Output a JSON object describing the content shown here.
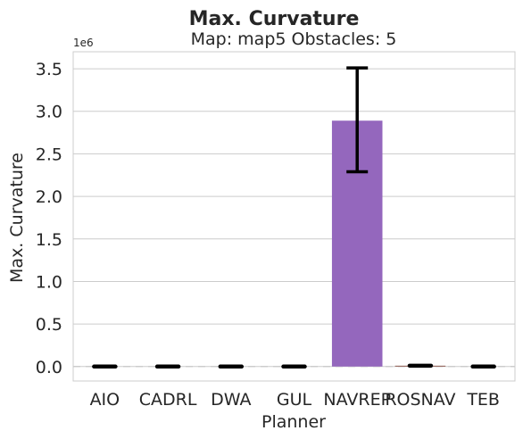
{
  "chart_data": {
    "type": "bar",
    "suptitle": "Max. Curvature",
    "title": "Map: map5 Obstacles: 5",
    "xlabel": "Planner",
    "ylabel": "Max. Curvature",
    "y_offset_label": "1e6",
    "y_scale": 1000000,
    "ylim": [
      -0.17,
      3.7
    ],
    "yticks": [
      0.0,
      0.5,
      1.0,
      1.5,
      2.0,
      2.5,
      3.0,
      3.5
    ],
    "ytick_labels": [
      "0.0",
      "0.5",
      "1.0",
      "1.5",
      "2.0",
      "2.5",
      "3.0",
      "3.5"
    ],
    "grid": "y",
    "categories": [
      "AIO",
      "CADRL",
      "DWA",
      "GUL",
      "NAVREP",
      "ROSNAV",
      "TEB"
    ],
    "values": [
      0.0,
      0.0,
      0.0,
      0.0,
      2.89,
      0.01,
      0.0
    ],
    "error_low": [
      0.0,
      0.0,
      0.0,
      0.0,
      2.29,
      0.005,
      0.0
    ],
    "error_high": [
      0.0,
      0.0,
      0.0,
      0.0,
      3.51,
      0.015,
      0.0
    ],
    "colors": [
      "#1f77b4",
      "#ff7f0e",
      "#2ca02c",
      "#d62728",
      "#9467bd",
      "#8c564b",
      "#e377c2"
    ],
    "bar_color_visible": "#9467bd",
    "error_bar_color": "#000000",
    "zero_line_color": "#cccccc"
  }
}
